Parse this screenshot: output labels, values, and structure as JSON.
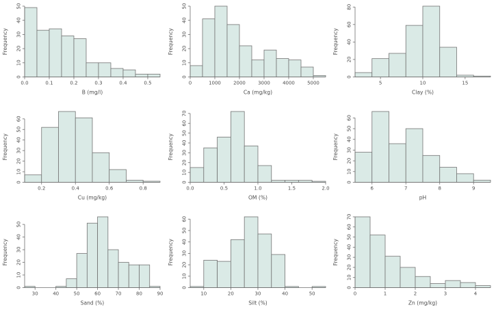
{
  "figure": {
    "description": "3x3 grid of R-style frequency histograms of soil properties",
    "background": "#ffffff"
  },
  "style": {
    "bar_fill": "#daeae6",
    "bar_stroke": "#737373",
    "axis_color": "#6e6e6e",
    "text_color": "#4d4d4d"
  },
  "chart_data": [
    {
      "type": "bar",
      "id": "b",
      "title": "",
      "xlabel": "B (mg/l)",
      "ylabel": "Frequency",
      "bin_start": 0.0,
      "bin_width": 0.05,
      "values": [
        49,
        33,
        34,
        29,
        27,
        10,
        10,
        6,
        5,
        2,
        2
      ],
      "xlim": [
        0.0,
        0.55
      ],
      "x_tick_values": [
        0.0,
        0.1,
        0.2,
        0.3,
        0.4,
        0.5
      ],
      "x_tick_labels": [
        "0.0",
        "0.1",
        "0.2",
        "0.3",
        "0.4",
        "0.5"
      ],
      "y_ticks": [
        0,
        10,
        20,
        30,
        40,
        50
      ],
      "ymax": 50,
      "grid": false,
      "legend": "none"
    },
    {
      "type": "bar",
      "id": "ca",
      "title": "",
      "xlabel": "Ca (mg/kg)",
      "ylabel": "Frequency",
      "bin_start": 0,
      "bin_width": 500,
      "values": [
        8,
        41,
        50,
        37,
        22,
        12,
        19,
        13,
        12,
        7,
        1
      ],
      "xlim": [
        0,
        5500
      ],
      "x_tick_values": [
        0,
        1000,
        2000,
        3000,
        4000,
        5000
      ],
      "x_tick_labels": [
        "0",
        "1000",
        "2000",
        "3000",
        "4000",
        "5000"
      ],
      "y_ticks": [
        0,
        10,
        20,
        30,
        40,
        50
      ],
      "ymax": 50,
      "grid": false,
      "legend": "none"
    },
    {
      "type": "bar",
      "id": "clay",
      "title": "",
      "xlabel": "Clay (%)",
      "ylabel": "Frequency",
      "bin_start": 2,
      "bin_width": 2,
      "values": [
        5,
        21,
        27,
        59,
        81,
        34,
        2,
        1
      ],
      "xlim": [
        2,
        18
      ],
      "x_tick_values": [
        5,
        10,
        15
      ],
      "x_tick_labels": [
        "5",
        "10",
        "15"
      ],
      "y_ticks": [
        0,
        20,
        40,
        60,
        80
      ],
      "ymax": 81,
      "grid": false,
      "legend": "none"
    },
    {
      "type": "bar",
      "id": "cu",
      "title": "",
      "xlabel": "Cu (mg/kg)",
      "ylabel": "Frequency",
      "bin_start": 0.1,
      "bin_width": 0.1,
      "values": [
        7,
        52,
        67,
        61,
        28,
        12,
        2,
        1
      ],
      "xlim": [
        0.1,
        0.9
      ],
      "x_tick_values": [
        0.2,
        0.4,
        0.6,
        0.8
      ],
      "x_tick_labels": [
        "0.2",
        "0.4",
        "0.6",
        "0.8"
      ],
      "y_ticks": [
        0,
        10,
        20,
        30,
        40,
        50,
        60
      ],
      "ymax": 67,
      "grid": false,
      "legend": "none"
    },
    {
      "type": "bar",
      "id": "om",
      "title": "",
      "xlabel": "OM (%)",
      "ylabel": "Frequency",
      "bin_start": 0.0,
      "bin_width": 0.2,
      "values": [
        15,
        35,
        46,
        72,
        37,
        17,
        2,
        2,
        2,
        1
      ],
      "xlim": [
        0.0,
        2.0
      ],
      "x_tick_values": [
        0.0,
        0.5,
        1.0,
        1.5,
        2.0
      ],
      "x_tick_labels": [
        "0.0",
        "0.5",
        "1.0",
        "1.5",
        "2.0"
      ],
      "y_ticks": [
        0,
        10,
        20,
        30,
        40,
        50,
        60,
        70
      ],
      "ymax": 72,
      "grid": false,
      "legend": "none"
    },
    {
      "type": "bar",
      "id": "ph",
      "title": "",
      "xlabel": "pH",
      "ylabel": "Frequency",
      "bin_start": 5.5,
      "bin_width": 0.5,
      "values": [
        28,
        66,
        36,
        50,
        25,
        14,
        8,
        2
      ],
      "xlim": [
        5.5,
        9.5
      ],
      "x_tick_values": [
        6,
        7,
        8,
        9
      ],
      "x_tick_labels": [
        "6",
        "7",
        "8",
        "9"
      ],
      "y_ticks": [
        0,
        10,
        20,
        30,
        40,
        50,
        60
      ],
      "ymax": 66,
      "grid": false,
      "legend": "none"
    },
    {
      "type": "bar",
      "id": "sand",
      "title": "",
      "xlabel": "Sand (%)",
      "ylabel": "Frequency",
      "bin_start": 25,
      "bin_width": 5,
      "values": [
        1,
        0,
        0,
        1,
        7,
        27,
        51,
        56,
        30,
        20,
        18,
        18,
        1
      ],
      "xlim": [
        25,
        90
      ],
      "x_tick_values": [
        30,
        40,
        50,
        60,
        70,
        80,
        90
      ],
      "x_tick_labels": [
        "30",
        "40",
        "50",
        "60",
        "70",
        "80",
        "90"
      ],
      "y_ticks": [
        0,
        10,
        20,
        30,
        40,
        50
      ],
      "ymax": 56,
      "grid": false,
      "legend": "none"
    },
    {
      "type": "bar",
      "id": "silt",
      "title": "",
      "xlabel": "Silt (%)",
      "ylabel": "Frequency",
      "bin_start": 5,
      "bin_width": 5,
      "values": [
        1,
        24,
        23,
        42,
        62,
        47,
        29,
        1,
        0,
        1
      ],
      "xlim": [
        5,
        55
      ],
      "x_tick_values": [
        10,
        20,
        30,
        40,
        50
      ],
      "x_tick_labels": [
        "10",
        "20",
        "30",
        "40",
        "50"
      ],
      "y_ticks": [
        0,
        10,
        20,
        30,
        40,
        50,
        60
      ],
      "ymax": 62,
      "grid": false,
      "legend": "none"
    },
    {
      "type": "bar",
      "id": "zn",
      "title": "",
      "xlabel": "Zn (mg/kg)",
      "ylabel": "Frequency",
      "bin_start": 0.0,
      "bin_width": 0.5,
      "values": [
        70,
        52,
        31,
        20,
        11,
        4,
        7,
        5,
        2
      ],
      "xlim": [
        0.0,
        4.5
      ],
      "x_tick_values": [
        0,
        1,
        2,
        3,
        4
      ],
      "x_tick_labels": [
        "0",
        "1",
        "2",
        "3",
        "4"
      ],
      "y_ticks": [
        0,
        10,
        20,
        30,
        40,
        50,
        60,
        70
      ],
      "ymax": 70,
      "grid": false,
      "legend": "none"
    }
  ]
}
